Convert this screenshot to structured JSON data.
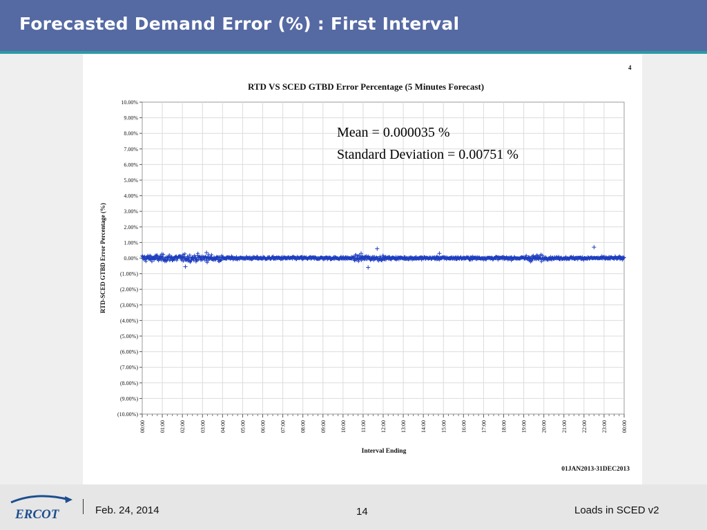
{
  "slide": {
    "title": "Forecasted Demand Error (%) : First Interval",
    "corner_mark": "4",
    "annotation_lines": [
      "Mean = 0.000035 %",
      "Standard Deviation = 0.00751 %"
    ],
    "date_range": "01JAN2013-31DEC2013"
  },
  "footer": {
    "logo_text": "ERCOT",
    "date": "Feb. 24, 2014",
    "page_number": "14",
    "deck_title": "Loads in SCED v2"
  },
  "colors": {
    "header_bg": "#5569a3",
    "accent_teal": "#2b9aa8",
    "marker": "#1f3fbf",
    "grid": "#dcdcdc",
    "logo_blue": "#1d4e8f"
  },
  "chart_data": {
    "type": "scatter",
    "title": "RTD VS SCED GTBD Error Percentage (5 Minutes Forecast)",
    "xlabel": "Interval Ending",
    "ylabel": "RTD-SCED GTBD Error Percentage (%)",
    "x_tick_labels": [
      "00:00",
      "01:00",
      "02:00",
      "03:00",
      "04:00",
      "05:00",
      "06:00",
      "07:00",
      "08:00",
      "09:00",
      "10:00",
      "11:00",
      "12:00",
      "13:00",
      "14:00",
      "15:00",
      "16:00",
      "17:00",
      "18:00",
      "19:00",
      "20:00",
      "21:00",
      "22:00",
      "23:00",
      "00:00"
    ],
    "y_tick_labels": [
      "10.00%",
      "9.00%",
      "8.00%",
      "7.00%",
      "6.00%",
      "5.00%",
      "4.00%",
      "3.00%",
      "2.00%",
      "1.00%",
      "0.00%",
      "(1.00%)",
      "(2.00%)",
      "(3.00%)",
      "(4.00%)",
      "(5.00%)",
      "(6.00%)",
      "(7.00%)",
      "(8.00%)",
      "(9.00%)",
      "(10.00%)"
    ],
    "xlim": [
      0,
      24
    ],
    "ylim": [
      -10,
      10
    ],
    "grid": true,
    "marker": "+",
    "mean_pct": 3.5e-05,
    "std_dev_pct": 0.00751,
    "outliers": [
      {
        "x": 2.15,
        "y": -0.55
      },
      {
        "x": 3.2,
        "y": 0.35
      },
      {
        "x": 10.9,
        "y": 0.3
      },
      {
        "x": 11.25,
        "y": -0.6
      },
      {
        "x": 11.7,
        "y": 0.6
      },
      {
        "x": 14.8,
        "y": 0.3
      },
      {
        "x": 22.5,
        "y": 0.7
      }
    ]
  }
}
